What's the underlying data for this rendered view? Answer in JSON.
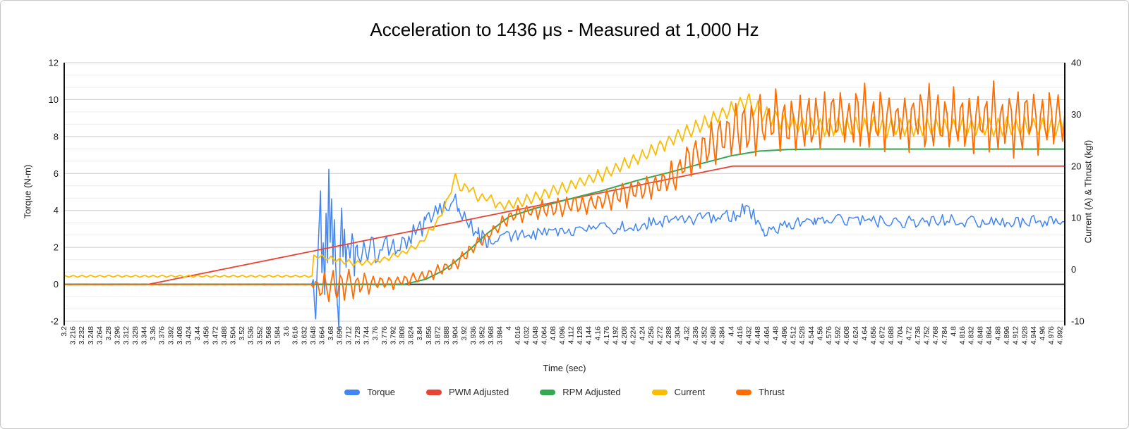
{
  "chart_data": {
    "type": "line",
    "title": "Acceleration to 1436 μs - Measured at 1,000 Hz",
    "xlabel": "Time (sec)",
    "ylabel_left": "Torque (N-m)",
    "ylabel_right": "Current (A) & Thrust (kgf)",
    "x_range": [
      3.2,
      5.0
    ],
    "left_range": [
      -2,
      12
    ],
    "right_range": [
      -10,
      40
    ],
    "left_ticks": [
      12,
      10,
      8,
      6,
      4,
      2,
      0,
      -2
    ],
    "right_ticks": [
      40,
      30,
      20,
      10,
      0,
      -10
    ],
    "x_tick_step": 0.016,
    "grid": true,
    "legend_position": "bottom",
    "x_tick_labels": [
      "3.2",
      "3.216",
      "3.232",
      "3.248",
      "3.264",
      "3.28",
      "3.296",
      "3.312",
      "3.328",
      "3.344",
      "3.36",
      "3.376",
      "3.392",
      "3.408",
      "3.424",
      "3.44",
      "3.456",
      "3.472",
      "3.488",
      "3.504",
      "3.52",
      "3.536",
      "3.552",
      "3.568",
      "3.584",
      "3.6",
      "3.616",
      "3.632",
      "3.648",
      "3.664",
      "3.68",
      "3.696",
      "3.712",
      "3.728",
      "3.744",
      "3.76",
      "3.776",
      "3.792",
      "3.808",
      "3.824",
      "3.84",
      "3.856",
      "3.872",
      "3.888",
      "3.904",
      "3.92",
      "3.936",
      "3.952",
      "3.968",
      "3.984",
      "4",
      "4.016",
      "4.032",
      "4.048",
      "4.064",
      "4.08",
      "4.096",
      "4.112",
      "4.128",
      "4.144",
      "4.16",
      "4.176",
      "4.192",
      "4.208",
      "4.224",
      "4.24",
      "4.256",
      "4.272",
      "4.288",
      "4.304",
      "4.32",
      "4.336",
      "4.352",
      "4.368",
      "4.384",
      "4.4",
      "4.416",
      "4.432",
      "4.448",
      "4.464",
      "4.48",
      "4.496",
      "4.512",
      "4.528",
      "4.544",
      "4.56",
      "4.576",
      "4.592",
      "4.608",
      "4.624",
      "4.64",
      "4.656",
      "4.672",
      "4.688",
      "4.704",
      "4.72",
      "4.736",
      "4.752",
      "4.768",
      "4.784",
      "4.8",
      "4.816",
      "4.832",
      "4.848",
      "4.864",
      "4.88",
      "4.896",
      "4.912",
      "4.928",
      "4.944",
      "4.96",
      "4.976",
      "4.992"
    ],
    "series": [
      {
        "name": "Torque",
        "axis": "left",
        "color": "#4285F4",
        "width": 1.5,
        "noise_type": "random",
        "noise_period": 0.004,
        "jitter": 0,
        "seed": 7,
        "points": [
          [
            3.2,
            0
          ],
          [
            3.645,
            0
          ],
          [
            3.648,
            0.2
          ],
          [
            3.65,
            -1.0
          ],
          [
            3.6525,
            -1.9
          ],
          [
            3.655,
            0.8
          ],
          [
            3.6585,
            3.0
          ],
          [
            3.661,
            5.1
          ],
          [
            3.6635,
            0.5
          ],
          [
            3.666,
            2.2
          ],
          [
            3.6685,
            -0.4
          ],
          [
            3.671,
            4.2
          ],
          [
            3.6735,
            1.1
          ],
          [
            3.676,
            6.2
          ],
          [
            3.6785,
            2.4
          ],
          [
            3.681,
            4.9
          ],
          [
            3.6835,
            1.4
          ],
          [
            3.686,
            3.3
          ],
          [
            3.689,
            0.6
          ],
          [
            3.6915,
            -1.2
          ],
          [
            3.694,
            -2.3
          ],
          [
            3.6965,
            1.8
          ],
          [
            3.699,
            3.9
          ],
          [
            3.7015,
            1.5
          ],
          [
            3.704,
            3.1
          ],
          [
            3.707,
            1.2
          ],
          [
            3.71,
            2.7
          ],
          [
            3.714,
            1.0
          ],
          [
            3.718,
            2.4
          ],
          [
            3.722,
            1.1
          ],
          [
            3.727,
            2.2
          ],
          [
            3.733,
            1.0
          ],
          [
            3.739,
            2.0
          ],
          [
            3.746,
            1.2
          ],
          [
            3.753,
            2.2
          ],
          [
            3.76,
            1.6
          ],
          [
            3.8,
            2.2
          ],
          [
            3.84,
            2.9
          ],
          [
            3.87,
            3.9
          ],
          [
            3.885,
            4.35
          ],
          [
            3.905,
            4.45
          ],
          [
            3.92,
            3.7
          ],
          [
            3.945,
            2.7
          ],
          [
            3.962,
            2.3
          ],
          [
            3.98,
            2.5
          ],
          [
            4.0,
            2.6
          ],
          [
            4.06,
            2.75
          ],
          [
            4.12,
            2.9
          ],
          [
            4.18,
            3.05
          ],
          [
            4.24,
            3.25
          ],
          [
            4.3,
            3.4
          ],
          [
            4.36,
            3.6
          ],
          [
            4.41,
            3.85
          ],
          [
            4.425,
            4.15
          ],
          [
            4.44,
            3.7
          ],
          [
            4.457,
            3.0
          ],
          [
            4.475,
            2.9
          ],
          [
            4.5,
            3.25
          ],
          [
            4.54,
            3.4
          ],
          [
            4.6,
            3.45
          ],
          [
            4.7,
            3.4
          ],
          [
            4.8,
            3.45
          ],
          [
            4.9,
            3.4
          ],
          [
            5.0,
            3.45
          ]
        ],
        "noise": [
          [
            3.2,
            0
          ],
          [
            3.645,
            0
          ],
          [
            3.66,
            0.3
          ],
          [
            3.7,
            0.5
          ],
          [
            3.72,
            0.8
          ],
          [
            3.78,
            0.7
          ],
          [
            3.85,
            0.55
          ],
          [
            3.91,
            0.5
          ],
          [
            3.95,
            0.4
          ],
          [
            4.0,
            0.3
          ],
          [
            4.1,
            0.33
          ],
          [
            4.25,
            0.38
          ],
          [
            4.38,
            0.42
          ],
          [
            4.44,
            0.45
          ],
          [
            4.48,
            0.3
          ],
          [
            4.55,
            0.35
          ],
          [
            5.0,
            0.35
          ]
        ]
      },
      {
        "name": "PWM Adjusted",
        "axis": "right",
        "color": "#EA4335",
        "width": 1.8,
        "noise_type": "none",
        "noise_period": 0.016,
        "jitter": 0,
        "seed": 1,
        "points": [
          [
            3.2,
            -2.9
          ],
          [
            3.35,
            -2.9
          ],
          [
            4.403,
            20
          ],
          [
            5.0,
            20
          ]
        ],
        "noise": [
          [
            3.2,
            0
          ],
          [
            5.0,
            0
          ]
        ]
      },
      {
        "name": "RPM Adjusted",
        "axis": "right",
        "color": "#34A853",
        "width": 2,
        "noise_type": "none",
        "noise_period": 0.016,
        "jitter": 0,
        "seed": 2,
        "points": [
          [
            3.2,
            -2.9
          ],
          [
            3.81,
            -2.9
          ],
          [
            3.85,
            -1.9
          ],
          [
            3.88,
            -0.3
          ],
          [
            3.9,
            1.2
          ],
          [
            3.93,
            3.9
          ],
          [
            3.96,
            6.9
          ],
          [
            4.0,
            10.2
          ],
          [
            4.05,
            11.9
          ],
          [
            4.1,
            13.4
          ],
          [
            4.166,
            15.2
          ],
          [
            4.23,
            17.2
          ],
          [
            4.293,
            18.9
          ],
          [
            4.35,
            20.6
          ],
          [
            4.4,
            22.0
          ],
          [
            4.45,
            22.9
          ],
          [
            4.5,
            23.2
          ],
          [
            4.56,
            23.3
          ],
          [
            5.0,
            23.3
          ]
        ],
        "noise": [
          [
            3.2,
            0
          ],
          [
            5.0,
            0
          ]
        ]
      },
      {
        "name": "Current",
        "axis": "right",
        "color": "#FBBC04",
        "width": 1.8,
        "noise_type": "zigzag",
        "noise_period": 0.016,
        "jitter": 0.2,
        "seed": 3,
        "points": [
          [
            3.2,
            -1.3
          ],
          [
            3.646,
            -1.3
          ],
          [
            3.649,
            2.6
          ],
          [
            3.66,
            2.5
          ],
          [
            3.69,
            1.9
          ],
          [
            3.72,
            1.2
          ],
          [
            3.75,
            1.4
          ],
          [
            3.78,
            2.1
          ],
          [
            3.81,
            3.2
          ],
          [
            3.84,
            5.0
          ],
          [
            3.87,
            9.0
          ],
          [
            3.89,
            13.5
          ],
          [
            3.903,
            17.8
          ],
          [
            3.915,
            15.4
          ],
          [
            3.925,
            16.2
          ],
          [
            3.946,
            13.8
          ],
          [
            3.963,
            14.0
          ],
          [
            3.984,
            12.3
          ],
          [
            4.02,
            13.0
          ],
          [
            4.08,
            15.2
          ],
          [
            4.166,
            18.2
          ],
          [
            4.23,
            21.5
          ],
          [
            4.293,
            25.0
          ],
          [
            4.357,
            28.5
          ],
          [
            4.4,
            31.0
          ],
          [
            4.43,
            32.5
          ],
          [
            4.46,
            30.0
          ],
          [
            4.5,
            28.5
          ],
          [
            4.55,
            27.6
          ],
          [
            4.7,
            27.5
          ],
          [
            4.85,
            27.6
          ],
          [
            5.0,
            27.5
          ]
        ],
        "noise": [
          [
            3.2,
            0.18
          ],
          [
            3.645,
            0.18
          ],
          [
            3.66,
            0.45
          ],
          [
            3.8,
            0.5
          ],
          [
            3.87,
            0.7
          ],
          [
            3.93,
            0.8
          ],
          [
            4.0,
            0.9
          ],
          [
            4.15,
            1.1
          ],
          [
            4.3,
            1.3
          ],
          [
            4.42,
            1.5
          ],
          [
            4.55,
            1.7
          ],
          [
            5.0,
            1.7
          ]
        ]
      },
      {
        "name": "Thrust",
        "axis": "right",
        "color": "#FF6D01",
        "width": 1.8,
        "noise_type": "zigzag",
        "noise_period": 0.0145,
        "jitter": 0.25,
        "seed": 11,
        "points": [
          [
            3.2,
            -2.9
          ],
          [
            3.645,
            -2.9
          ],
          [
            3.66,
            -3.2
          ],
          [
            3.7,
            -3.0
          ],
          [
            3.74,
            -2.8
          ],
          [
            3.78,
            -2.5
          ],
          [
            3.84,
            -1.5
          ],
          [
            3.9,
            0.9
          ],
          [
            3.96,
            6.3
          ],
          [
            4.0,
            10.2
          ],
          [
            4.08,
            12.0
          ],
          [
            4.166,
            13.2
          ],
          [
            4.23,
            15.3
          ],
          [
            4.293,
            17.5
          ],
          [
            4.33,
            22.0
          ],
          [
            4.37,
            25.0
          ],
          [
            4.41,
            27.0
          ],
          [
            4.45,
            28.3
          ],
          [
            4.5,
            29.0
          ],
          [
            5.0,
            29.0
          ]
        ],
        "noise": [
          [
            3.2,
            0.05
          ],
          [
            3.644,
            0.05
          ],
          [
            3.658,
            2.8
          ],
          [
            3.69,
            3.3
          ],
          [
            3.73,
            2.6
          ],
          [
            3.78,
            1.4
          ],
          [
            3.9,
            1.3
          ],
          [
            4.0,
            1.6
          ],
          [
            4.1,
            1.9
          ],
          [
            4.2,
            2.3
          ],
          [
            4.3,
            3.2
          ],
          [
            4.38,
            4.4
          ],
          [
            4.45,
            5.5
          ],
          [
            4.6,
            6.0
          ],
          [
            4.75,
            6.3
          ],
          [
            4.9,
            6.6
          ],
          [
            5.0,
            6.2
          ]
        ]
      }
    ],
    "grid_colors": {
      "minor": "#ececec",
      "major": "#cccccc",
      "zero_line": "#2e2e2e",
      "axis_line": "#111111"
    },
    "text_color": "#1b1b1b"
  }
}
